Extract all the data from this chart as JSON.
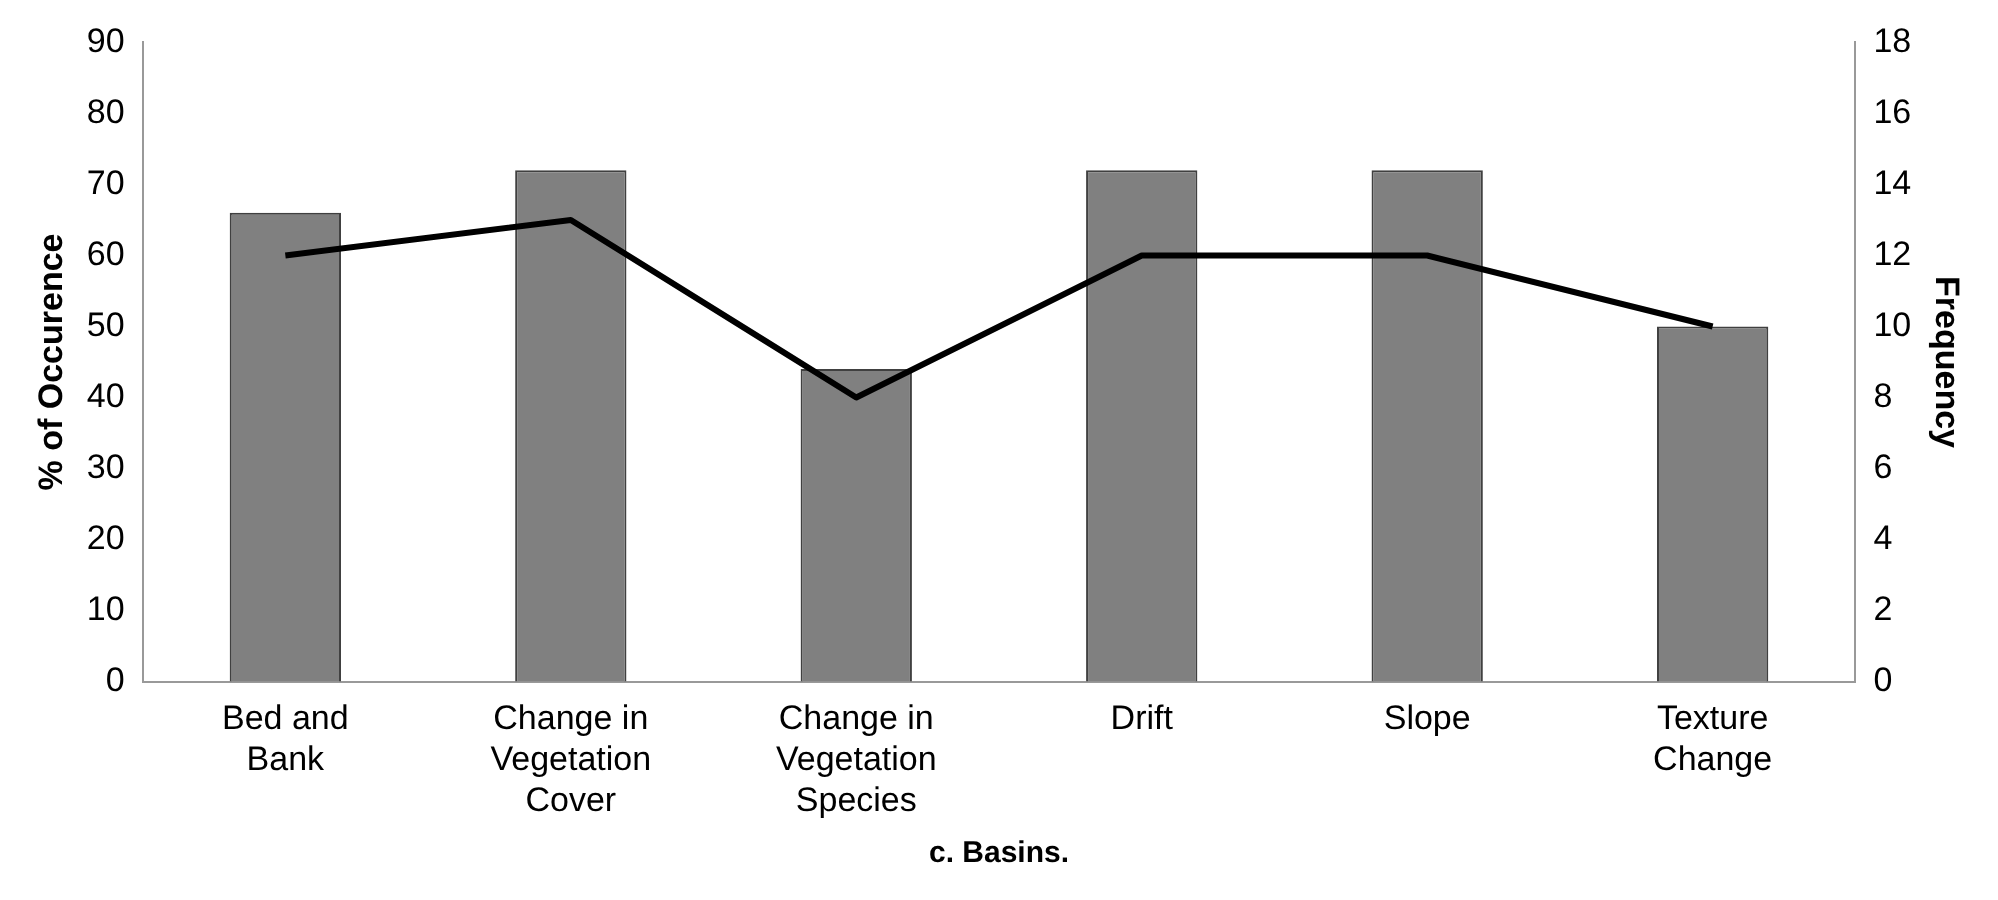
{
  "chart_data": {
    "type": "bar",
    "title": "c. Basins.",
    "ylabel": "% of Occurence",
    "y2label": "Frequency",
    "categories": [
      "Bed and Bank",
      "Change in Vegetation Cover",
      "Change in Vegetation Species",
      "Drift",
      "Slope",
      "Texture Change"
    ],
    "series": [
      {
        "color": "#808080",
        "values": [
          66,
          72,
          44,
          72,
          72,
          50
        ]
      },
      {
        "type": "line",
        "axis": "y2",
        "color": "#000000",
        "values": [
          12,
          13,
          8,
          12,
          12,
          10
        ]
      }
    ],
    "ylim": [
      0,
      90
    ],
    "yticks": [
      0,
      10,
      20,
      30,
      40,
      50,
      60,
      70,
      80,
      90
    ],
    "y2lim": [
      0,
      18
    ],
    "y2ticks": [
      0,
      2,
      4,
      6,
      8,
      10,
      12,
      14,
      16,
      18
    ],
    "grid": false,
    "legend": false,
    "marker": "none"
  }
}
